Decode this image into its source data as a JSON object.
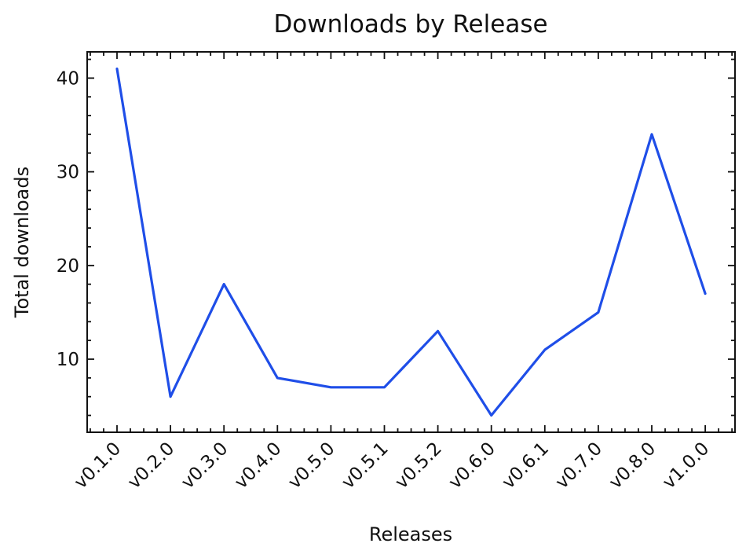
{
  "chart_data": {
    "type": "line",
    "title": "Downloads by Release",
    "xlabel": "Releases",
    "ylabel": "Total downloads",
    "categories": [
      "v0.1.0",
      "v0.2.0",
      "v0.3.0",
      "v0.4.0",
      "v0.5.0",
      "v0.5.1",
      "v0.5.2",
      "v0.6.0",
      "v0.6.1",
      "v0.7.0",
      "v0.8.0",
      "v1.0.0"
    ],
    "series": [
      {
        "values": [
          41,
          6,
          18,
          8,
          7,
          7,
          13,
          4,
          11,
          15,
          34,
          17
        ],
        "color": "#1f4ee8"
      }
    ],
    "ylim": [
      2.2,
      42.8
    ],
    "yticks": [
      10,
      20,
      30,
      40
    ],
    "yticks_labels": [
      "10",
      "20",
      "30",
      "40"
    ],
    "legend": "none",
    "grid": false
  }
}
